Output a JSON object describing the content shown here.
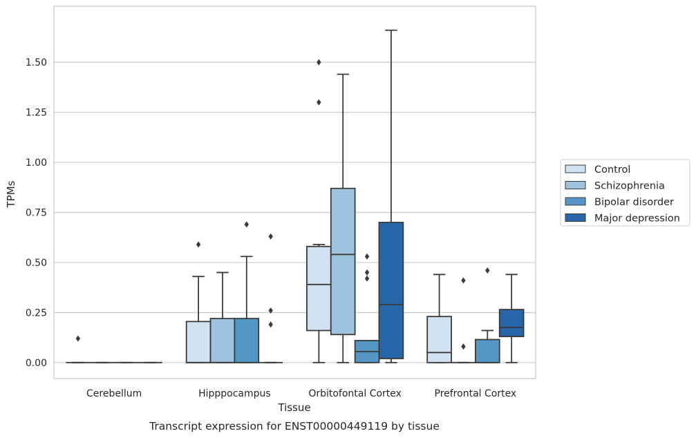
{
  "chart_data": {
    "type": "box",
    "title": "",
    "xlabel": "Tissue",
    "ylabel": "TPMs",
    "caption": "Transcript expression for ENST00000449119 by tissue",
    "categories": [
      "Cerebellum",
      "Hipppocampus",
      "Orbitofontal Cortex",
      "Prefrontal Cortex"
    ],
    "ylim": [
      -0.08,
      1.78
    ],
    "yticks": [
      "0.00",
      "0.25",
      "0.50",
      "0.75",
      "1.00",
      "1.25",
      "1.50"
    ],
    "grid": true,
    "legend_position": "right",
    "series": [
      {
        "name": "Control",
        "color": "#d0e1f2",
        "boxes": [
          {
            "q1": 0,
            "median": 0,
            "q3": 0,
            "whislo": 0,
            "whishi": 0,
            "fliers": [
              0.12
            ]
          },
          {
            "q1": 0,
            "median": 0,
            "q3": 0.205,
            "whislo": 0,
            "whishi": 0.43,
            "fliers": [
              0.59
            ]
          },
          {
            "q1": 0.16,
            "median": 0.39,
            "q3": 0.58,
            "whislo": 0,
            "whishi": 0.59,
            "fliers": [
              1.3,
              1.5
            ]
          },
          {
            "q1": 0,
            "median": 0.05,
            "q3": 0.23,
            "whislo": 0,
            "whishi": 0.44,
            "fliers": []
          }
        ]
      },
      {
        "name": "Schizophrenia",
        "color": "#9dc3de",
        "boxes": [
          {
            "q1": 0,
            "median": 0,
            "q3": 0,
            "whislo": 0,
            "whishi": 0,
            "fliers": []
          },
          {
            "q1": 0,
            "median": 0,
            "q3": 0.22,
            "whislo": 0,
            "whishi": 0.45,
            "fliers": []
          },
          {
            "q1": 0.14,
            "median": 0.54,
            "q3": 0.87,
            "whislo": 0,
            "whishi": 1.44,
            "fliers": []
          },
          {
            "q1": 0,
            "median": 0,
            "q3": 0,
            "whislo": 0,
            "whishi": 0,
            "fliers": [
              0.08,
              0.41
            ]
          }
        ]
      },
      {
        "name": "Bipolar disorder",
        "color": "#5497c6",
        "boxes": [
          {
            "q1": 0,
            "median": 0,
            "q3": 0,
            "whislo": 0,
            "whishi": 0,
            "fliers": []
          },
          {
            "q1": 0,
            "median": 0,
            "q3": 0.22,
            "whislo": 0,
            "whishi": 0.53,
            "fliers": [
              0.69
            ]
          },
          {
            "q1": 0,
            "median": 0.055,
            "q3": 0.11,
            "whislo": 0,
            "whishi": 0.11,
            "fliers": [
              0.42,
              0.45,
              0.53
            ]
          },
          {
            "q1": 0,
            "median": 0,
            "q3": 0.115,
            "whislo": 0,
            "whishi": 0.16,
            "fliers": [
              0.46
            ]
          }
        ]
      },
      {
        "name": "Major depression",
        "color": "#2766a8",
        "boxes": [
          {
            "q1": 0,
            "median": 0,
            "q3": 0,
            "whislo": 0,
            "whishi": 0,
            "fliers": []
          },
          {
            "q1": 0,
            "median": 0,
            "q3": 0,
            "whislo": 0,
            "whishi": 0,
            "fliers": [
              0.19,
              0.26,
              0.63
            ]
          },
          {
            "q1": 0.02,
            "median": 0.29,
            "q3": 0.7,
            "whislo": 0,
            "whishi": 1.66,
            "fliers": []
          },
          {
            "q1": 0.13,
            "median": 0.175,
            "q3": 0.265,
            "whislo": 0,
            "whishi": 0.44,
            "fliers": []
          }
        ]
      }
    ]
  }
}
